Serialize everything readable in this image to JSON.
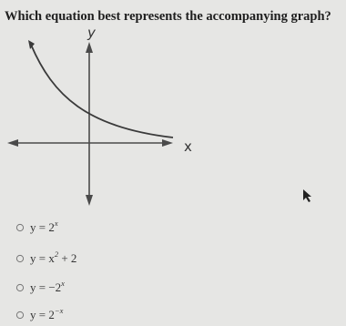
{
  "question": "Which equation best represents the accompanying graph?",
  "graph": {
    "y_label": "y",
    "x_label": "x"
  },
  "options": [
    {
      "parts": [
        {
          "text": "y = 2"
        },
        {
          "sup": "x"
        }
      ]
    },
    {
      "parts": [
        {
          "text": "y = x"
        },
        {
          "sup": "2"
        },
        {
          "text": " + 2"
        }
      ]
    },
    {
      "parts": [
        {
          "text": "y = −2"
        },
        {
          "sup": "x"
        }
      ]
    },
    {
      "parts": [
        {
          "text": "y = 2"
        },
        {
          "sup": "−x"
        }
      ]
    }
  ]
}
